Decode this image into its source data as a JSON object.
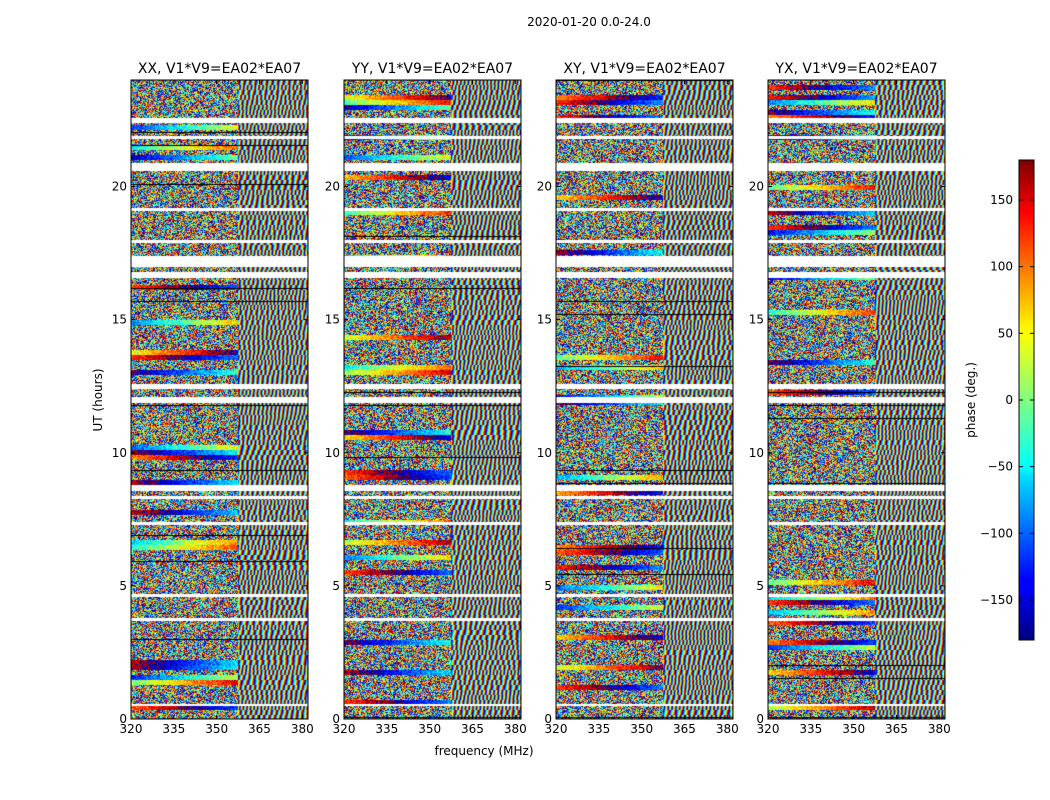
{
  "chart_data": {
    "type": "heatmap",
    "suptitle": "2020-01-20 0.0-24.0",
    "xlabel": "frequency (MHz)",
    "ylabel": "UT (hours)",
    "xlim": [
      320,
      382
    ],
    "ylim": [
      0,
      24
    ],
    "xticks": [
      320,
      335,
      350,
      365,
      380
    ],
    "yticks": [
      0,
      5,
      10,
      15,
      20
    ],
    "panels": [
      {
        "title": "XX, V1*V9=EA02*EA07",
        "polarization": "XX"
      },
      {
        "title": "YY, V1*V9=EA02*EA07",
        "polarization": "YY"
      },
      {
        "title": "XY, V1*V9=EA02*EA07",
        "polarization": "XY"
      },
      {
        "title": "YX, V1*V9=EA02*EA07",
        "polarization": "YX"
      }
    ],
    "colorbar": {
      "label": "phase (deg.)",
      "range": [
        -180,
        180
      ],
      "ticks": [
        -150,
        -100,
        -50,
        0,
        50,
        100,
        150
      ],
      "colormap": "jet"
    },
    "flagged_bands_hours": [
      [
        22.4,
        22.6
      ],
      [
        21.8,
        21.9
      ],
      [
        20.6,
        20.9
      ],
      [
        19.1,
        19.2
      ],
      [
        17.9,
        18.0
      ],
      [
        17.0,
        17.4
      ],
      [
        16.6,
        16.8
      ],
      [
        12.4,
        12.6
      ],
      [
        11.9,
        12.1
      ],
      [
        8.6,
        8.8
      ],
      [
        8.3,
        8.4
      ],
      [
        7.3,
        7.4
      ],
      [
        4.6,
        4.7
      ],
      [
        3.7,
        3.8
      ],
      [
        0.5,
        0.6
      ]
    ]
  }
}
